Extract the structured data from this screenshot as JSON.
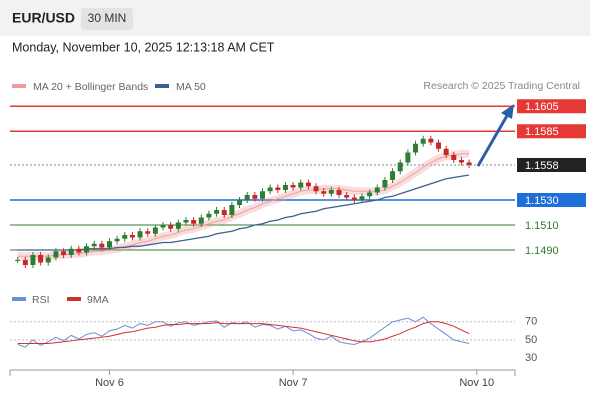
{
  "header": {
    "symbol": "EUR/USD",
    "interval": "30 MIN",
    "timestamp": "Monday, November 10, 2025 12:13:18 AM CET"
  },
  "chart_data": [
    {
      "type": "candlestick",
      "legend": [
        "MA 20 + Bollinger Bands",
        "MA 50"
      ],
      "credit": "Research © 2025 Trading Central",
      "xlim": [
        -1,
        65
      ],
      "xticks": [
        {
          "value": 12,
          "label": "Nov 6"
        },
        {
          "value": 36,
          "label": "Nov 7"
        },
        {
          "value": 60,
          "label": "Nov 10"
        }
      ],
      "ylim": [
        1.147,
        1.1614
      ],
      "up_color": "#2e7d32",
      "down_color": "#c62828",
      "close": [
        1.1482,
        1.1478,
        1.1486,
        1.148,
        1.1484,
        1.1489,
        1.1486,
        1.1491,
        1.1488,
        1.1493,
        1.1495,
        1.1492,
        1.1497,
        1.1499,
        1.1502,
        1.15,
        1.1505,
        1.1503,
        1.1508,
        1.151,
        1.1507,
        1.1512,
        1.1514,
        1.1511,
        1.1516,
        1.1519,
        1.1522,
        1.1518,
        1.1526,
        1.153,
        1.1534,
        1.1531,
        1.1537,
        1.154,
        1.1538,
        1.1542,
        1.154,
        1.1544,
        1.1541,
        1.1537,
        1.1535,
        1.1538,
        1.1534,
        1.1532,
        1.153,
        1.1533,
        1.1536,
        1.154,
        1.1546,
        1.1553,
        1.156,
        1.1568,
        1.1575,
        1.1579,
        1.1576,
        1.1571,
        1.1566,
        1.1562,
        1.156,
        1.1558
      ],
      "series": [
        {
          "name": "MA 20 + Bollinger Bands",
          "color": "#ef9a9a",
          "values": [
            1.1485,
            1.1485,
            1.1485,
            1.1485,
            1.1485,
            1.1486,
            1.1486,
            1.1487,
            1.1487,
            1.1488,
            1.1489,
            1.1489,
            1.149,
            1.1491,
            1.1493,
            1.1494,
            1.1496,
            1.1497,
            1.1499,
            1.1501,
            1.1502,
            1.1504,
            1.1506,
            1.1507,
            1.1509,
            1.1511,
            1.1513,
            1.1514,
            1.1517,
            1.1519,
            1.1522,
            1.1524,
            1.1527,
            1.1529,
            1.1531,
            1.1533,
            1.1535,
            1.1537,
            1.1538,
            1.1538,
            1.1539,
            1.1539,
            1.1539,
            1.1538,
            1.1537,
            1.1537,
            1.1537,
            1.1537,
            1.1538,
            1.1541,
            1.1544,
            1.1548,
            1.1552,
            1.1556,
            1.156,
            1.1563,
            1.1565,
            1.1566,
            1.1567,
            1.1567
          ]
        },
        {
          "name": "MA 50",
          "color": "#3b5f8f",
          "values": [
            1.149,
            1.149,
            1.149,
            1.149,
            1.149,
            1.149,
            1.149,
            1.149,
            1.149,
            1.1491,
            1.1491,
            1.1491,
            1.1491,
            1.1492,
            1.1492,
            1.1493,
            1.1493,
            1.1494,
            1.1495,
            1.1496,
            1.1496,
            1.1497,
            1.1498,
            1.1499,
            1.15,
            1.1501,
            1.1503,
            1.1504,
            1.1505,
            1.1507,
            1.1508,
            1.151,
            1.1511,
            1.1513,
            1.1514,
            1.1516,
            1.1517,
            1.1519,
            1.152,
            1.1521,
            1.1523,
            1.1524,
            1.1525,
            1.1526,
            1.1527,
            1.1528,
            1.1529,
            1.153,
            1.1532,
            1.1533,
            1.1535,
            1.1537,
            1.1539,
            1.1541,
            1.1543,
            1.1545,
            1.1547,
            1.1548,
            1.1549,
            1.155
          ]
        }
      ],
      "levels": [
        {
          "value": 1.1605,
          "label": "1.1605",
          "color": "#e53935",
          "style": "box",
          "line": "solid"
        },
        {
          "value": 1.1585,
          "label": "1.1585",
          "color": "#e53935",
          "style": "box",
          "line": "solid"
        },
        {
          "value": 1.1558,
          "label": "1.1558",
          "color": "#222222",
          "style": "box",
          "line": "dotted"
        },
        {
          "value": 1.153,
          "label": "1.1530",
          "color": "#1e6fd9",
          "style": "box",
          "line": "solid"
        },
        {
          "value": 1.151,
          "label": "1.1510",
          "color": "#2e7d32",
          "style": "text",
          "line": "solid"
        },
        {
          "value": 1.149,
          "label": "1.1490",
          "color": "#2e7d32",
          "style": "text",
          "line": "solid"
        }
      ]
    },
    {
      "type": "line",
      "ylim": [
        19,
        83
      ],
      "yticks": [
        70,
        50,
        30
      ],
      "grid": true,
      "xlim": [
        -1,
        65
      ],
      "series": [
        {
          "name": "RSI",
          "color": "#6b8fd6",
          "values": [
            45,
            42,
            50,
            44,
            48,
            53,
            49,
            55,
            51,
            56,
            58,
            54,
            60,
            62,
            66,
            63,
            68,
            66,
            70,
            70,
            65,
            69,
            70,
            66,
            68,
            70,
            71,
            64,
            69,
            68,
            70,
            64,
            67,
            66,
            62,
            65,
            60,
            61,
            57,
            52,
            50,
            54,
            48,
            46,
            45,
            48,
            52,
            58,
            64,
            70,
            72,
            74,
            70,
            75,
            68,
            62,
            56,
            50,
            48,
            46
          ]
        },
        {
          "name": "9MA",
          "color": "#d32f2f",
          "values": [
            46,
            46,
            46,
            46,
            46,
            47,
            48,
            49,
            50,
            51,
            52,
            53,
            54,
            56,
            58,
            59,
            61,
            63,
            64,
            66,
            67,
            67,
            68,
            68,
            68,
            68,
            69,
            68,
            68,
            68,
            68,
            68,
            68,
            67,
            66,
            65,
            64,
            63,
            61,
            59,
            57,
            55,
            53,
            51,
            49,
            48,
            48,
            49,
            51,
            54,
            57,
            61,
            64,
            68,
            70,
            70,
            68,
            65,
            61,
            57
          ]
        }
      ]
    }
  ]
}
